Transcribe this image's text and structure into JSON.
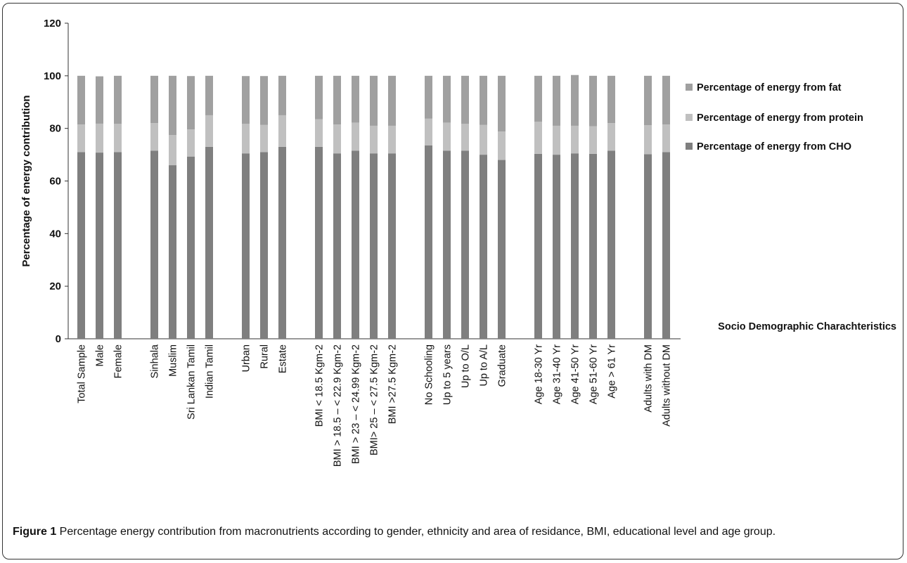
{
  "chart_data": {
    "type": "bar",
    "stacked": true,
    "ylabel": "Percentage of energy contribution",
    "xlabel": "Socio Demographic Charachteristics",
    "ylim": [
      0,
      120
    ],
    "yticks": [
      0,
      20,
      40,
      60,
      80,
      100,
      120
    ],
    "grid": false,
    "legend_position": "right",
    "groups": [
      {
        "categories": [
          "Total Sample",
          "Male",
          "Female"
        ]
      },
      {
        "categories": [
          "Sinhala",
          "Muslim",
          "Sri Lankan Tamil",
          "Indian Tamil"
        ]
      },
      {
        "categories": [
          "Urban",
          "Rural",
          "Estate"
        ]
      },
      {
        "categories": [
          "BMI < 18.5 Kgm-2",
          "BMI > 18.5 – < 22.9 Kgm-2",
          "BMI > 23 – < 24.99 Kgm-2",
          "BMI> 25 – < 27.5 Kgm-2",
          "BMI >27.5 Kgm-2"
        ]
      },
      {
        "categories": [
          "No Schooling",
          "Up to 5 years",
          "Up to O/L",
          "Up to A/L",
          "Graduate"
        ]
      },
      {
        "categories": [
          "Age 18-30 Yr",
          "Age 31-40 Yr",
          "Age 41-50 Yr",
          "Age 51-60 Yr",
          "Age > 61 Yr"
        ]
      },
      {
        "categories": [
          "Adults with DM",
          "Adults without DM"
        ]
      }
    ],
    "series": [
      {
        "name": "Percentage of  energy from CHO",
        "color": "#7f7f7f",
        "values": [
          71,
          70.8,
          71,
          71.5,
          66,
          69.3,
          73,
          70.5,
          71,
          73,
          73,
          70.5,
          71.5,
          70.5,
          70.5,
          73.5,
          71.5,
          71.5,
          70,
          68,
          70.3,
          70,
          70.5,
          70.3,
          71.5,
          70.2,
          71
        ]
      },
      {
        "name": "Percentage of  energy from protein",
        "color": "#c0c0c0",
        "values": [
          10.5,
          11,
          10.7,
          10.5,
          11.5,
          10.3,
          12,
          11.2,
          10.3,
          12,
          10.5,
          11,
          10.7,
          10.5,
          10.5,
          10.2,
          10.7,
          10.2,
          11.3,
          10.8,
          12.2,
          11,
          10.5,
          10.5,
          10.5,
          11,
          10.5
        ]
      },
      {
        "name": "Percentage of  energy from fat",
        "color": "#a0a0a0",
        "values": [
          18.5,
          18,
          18.3,
          18,
          22.5,
          20.3,
          15,
          18.2,
          18.6,
          15,
          16.5,
          18.5,
          17.8,
          19,
          19,
          16.3,
          17.8,
          18.3,
          18.7,
          21.2,
          17.5,
          19,
          19.3,
          19.2,
          18,
          18.8,
          18.5
        ]
      }
    ]
  },
  "caption": {
    "label": "Figure 1",
    "text": " Percentage energy contribution from macronutrients according to gender, ethnicity and area of residance, BMI, educational level and age group."
  }
}
